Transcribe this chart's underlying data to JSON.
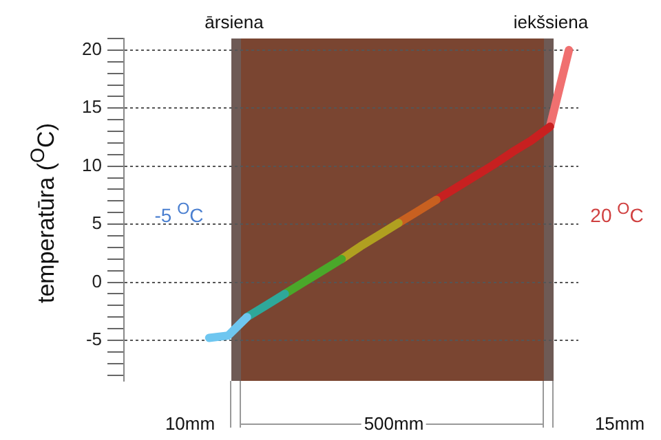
{
  "chart_data": {
    "type": "line",
    "ylabel": "temperatūra ($^{O}$C)",
    "categories": [
      null,
      null,
      null,
      null,
      null,
      null,
      null,
      null,
      null,
      null,
      null,
      null,
      null,
      null,
      null,
      null,
      null,
      null,
      null,
      null,
      null,
      null,
      null,
      null
    ],
    "series": [
      {
        "color": "#6ec6f0",
        "values": [
          null,
          null,
          null,
          null,
          -4.8,
          -4.6,
          -3.0,
          null,
          null,
          null,
          null,
          null,
          null,
          null,
          null,
          null,
          null,
          null,
          null,
          null,
          null,
          null,
          null,
          null
        ]
      },
      {
        "color": "#2ea89a",
        "values": [
          null,
          null,
          null,
          null,
          null,
          null,
          -3.0,
          -2.0,
          -1.0,
          null,
          null,
          null,
          null,
          null,
          null,
          null,
          null,
          null,
          null,
          null,
          null,
          null,
          null,
          null
        ]
      },
      {
        "color": "#4aa82a",
        "values": [
          null,
          null,
          null,
          null,
          null,
          null,
          null,
          null,
          -1.0,
          0.0,
          1.0,
          2.0,
          null,
          null,
          null,
          null,
          null,
          null,
          null,
          null,
          null,
          null,
          null,
          null
        ]
      },
      {
        "color": "#b0a020",
        "values": [
          null,
          null,
          null,
          null,
          null,
          null,
          null,
          null,
          null,
          null,
          null,
          2.0,
          3.1,
          4.1,
          5.1,
          null,
          null,
          null,
          null,
          null,
          null,
          null,
          null,
          null
        ]
      },
      {
        "color": "#c86020",
        "values": [
          null,
          null,
          null,
          null,
          null,
          null,
          null,
          null,
          null,
          null,
          null,
          null,
          null,
          null,
          5.1,
          6.1,
          7.1,
          null,
          null,
          null,
          null,
          null,
          null,
          null
        ]
      },
      {
        "color": "#c82020",
        "values": [
          null,
          null,
          null,
          null,
          null,
          null,
          null,
          null,
          null,
          null,
          null,
          null,
          null,
          null,
          null,
          null,
          7.1,
          8.1,
          9.1,
          10.1,
          11.2,
          12.2,
          13.4,
          null
        ]
      },
      {
        "color": "#f07070",
        "values": [
          null,
          null,
          null,
          null,
          null,
          null,
          null,
          null,
          null,
          null,
          null,
          null,
          null,
          null,
          null,
          null,
          null,
          null,
          null,
          null,
          null,
          null,
          13.4,
          20
        ]
      }
    ],
    "ylim": [
      -8.5,
      21
    ],
    "yticks": [
      {
        "value": -8,
        "label": null
      },
      {
        "value": -7,
        "label": null
      },
      {
        "value": -6,
        "label": null
      },
      -5,
      {
        "value": -4,
        "label": null
      },
      {
        "value": -3,
        "label": null
      },
      {
        "value": -2,
        "label": null
      },
      {
        "value": -1,
        "label": null
      },
      0,
      {
        "value": 1,
        "label": null
      },
      {
        "value": 2,
        "label": null
      },
      {
        "value": 3,
        "label": null
      },
      {
        "value": 4,
        "label": null
      },
      5,
      {
        "value": 6,
        "label": null
      },
      {
        "value": 7,
        "label": null
      },
      {
        "value": 8,
        "label": null
      },
      {
        "value": 9,
        "label": null
      },
      10,
      {
        "value": 11,
        "label": null
      },
      {
        "value": 12,
        "label": null
      },
      {
        "value": 13,
        "label": null
      },
      {
        "value": 14,
        "label": null
      },
      15,
      {
        "value": 16,
        "label": null
      },
      {
        "value": 17,
        "label": null
      },
      {
        "value": 18,
        "label": null
      },
      {
        "value": 19,
        "label": null
      },
      20,
      {
        "value": 21,
        "label": null
      }
    ],
    "grid": "y",
    "marker": "none",
    "annotations": [
      "ārsiena",
      "iekšsiena",
      "-5 $^{O}$C",
      "20 $^{O}$C",
      "10mm",
      "500mm",
      "15mm"
    ]
  }
}
